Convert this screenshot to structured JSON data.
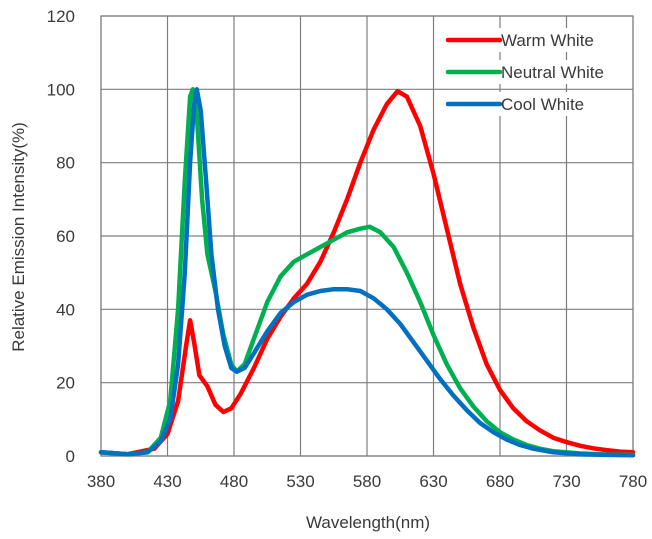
{
  "chart_data": {
    "type": "line",
    "title": "",
    "xlabel": "Wavelength(nm)",
    "ylabel": "Relative Emission Intensity(%)",
    "xlim": [
      380,
      780
    ],
    "ylim": [
      0,
      120
    ],
    "x_ticks": [
      380,
      430,
      480,
      530,
      580,
      630,
      680,
      730,
      780
    ],
    "y_ticks": [
      0,
      20,
      40,
      60,
      80,
      100,
      120
    ],
    "grid": true,
    "legend_position": "top-right",
    "series": [
      {
        "name": "Warm White",
        "color": "#ff0000",
        "points": [
          [
            380,
            1
          ],
          [
            400,
            0.5
          ],
          [
            420,
            2
          ],
          [
            430,
            6
          ],
          [
            438,
            15
          ],
          [
            444,
            30
          ],
          [
            447,
            37
          ],
          [
            450,
            31
          ],
          [
            454,
            22
          ],
          [
            460,
            19
          ],
          [
            466,
            14
          ],
          [
            472,
            12
          ],
          [
            478,
            13
          ],
          [
            485,
            17
          ],
          [
            495,
            24
          ],
          [
            505,
            32
          ],
          [
            515,
            38
          ],
          [
            525,
            43
          ],
          [
            535,
            47
          ],
          [
            545,
            53
          ],
          [
            555,
            61
          ],
          [
            565,
            70
          ],
          [
            575,
            80
          ],
          [
            585,
            89
          ],
          [
            595,
            96
          ],
          [
            603,
            99.5
          ],
          [
            610,
            98
          ],
          [
            620,
            90
          ],
          [
            630,
            77
          ],
          [
            640,
            62
          ],
          [
            650,
            47
          ],
          [
            660,
            35
          ],
          [
            670,
            25
          ],
          [
            680,
            18
          ],
          [
            690,
            13
          ],
          [
            700,
            9.5
          ],
          [
            710,
            7
          ],
          [
            720,
            5
          ],
          [
            730,
            3.8
          ],
          [
            740,
            2.8
          ],
          [
            750,
            2.1
          ],
          [
            760,
            1.6
          ],
          [
            770,
            1.2
          ],
          [
            780,
            1
          ]
        ]
      },
      {
        "name": "Neutral White",
        "color": "#00b050",
        "points": [
          [
            380,
            1
          ],
          [
            400,
            0.5
          ],
          [
            415,
            1
          ],
          [
            425,
            5
          ],
          [
            432,
            15
          ],
          [
            438,
            40
          ],
          [
            443,
            75
          ],
          [
            447,
            98
          ],
          [
            449,
            100
          ],
          [
            452,
            93
          ],
          [
            456,
            70
          ],
          [
            460,
            55
          ],
          [
            466,
            45
          ],
          [
            472,
            33
          ],
          [
            478,
            25
          ],
          [
            482,
            23
          ],
          [
            488,
            25
          ],
          [
            495,
            32
          ],
          [
            505,
            42
          ],
          [
            515,
            49
          ],
          [
            525,
            53
          ],
          [
            535,
            55
          ],
          [
            545,
            57
          ],
          [
            555,
            59
          ],
          [
            565,
            61
          ],
          [
            575,
            62
          ],
          [
            582,
            62.5
          ],
          [
            590,
            61
          ],
          [
            600,
            57
          ],
          [
            610,
            50
          ],
          [
            620,
            42
          ],
          [
            630,
            33
          ],
          [
            640,
            25
          ],
          [
            650,
            18.5
          ],
          [
            660,
            13.5
          ],
          [
            670,
            9.5
          ],
          [
            680,
            6.5
          ],
          [
            690,
            4.5
          ],
          [
            700,
            3
          ],
          [
            710,
            2
          ],
          [
            720,
            1.3
          ],
          [
            740,
            0.7
          ],
          [
            760,
            0.4
          ],
          [
            780,
            0.3
          ]
        ]
      },
      {
        "name": "Cool White",
        "color": "#0070c0",
        "points": [
          [
            380,
            1
          ],
          [
            400,
            0.5
          ],
          [
            415,
            1
          ],
          [
            425,
            4
          ],
          [
            432,
            10
          ],
          [
            438,
            25
          ],
          [
            443,
            50
          ],
          [
            447,
            80
          ],
          [
            450,
            96
          ],
          [
            452,
            100
          ],
          [
            455,
            94
          ],
          [
            459,
            75
          ],
          [
            463,
            55
          ],
          [
            468,
            40
          ],
          [
            473,
            30
          ],
          [
            478,
            24
          ],
          [
            482,
            23
          ],
          [
            488,
            24
          ],
          [
            495,
            28
          ],
          [
            505,
            34
          ],
          [
            515,
            39
          ],
          [
            525,
            42
          ],
          [
            535,
            44
          ],
          [
            545,
            45
          ],
          [
            555,
            45.5
          ],
          [
            565,
            45.5
          ],
          [
            575,
            45
          ],
          [
            585,
            43
          ],
          [
            595,
            40
          ],
          [
            605,
            36
          ],
          [
            615,
            31
          ],
          [
            625,
            26
          ],
          [
            635,
            21
          ],
          [
            645,
            16.5
          ],
          [
            655,
            12.5
          ],
          [
            665,
            9
          ],
          [
            675,
            6.5
          ],
          [
            685,
            4.5
          ],
          [
            695,
            3
          ],
          [
            705,
            2
          ],
          [
            720,
            1
          ],
          [
            740,
            0.5
          ],
          [
            760,
            0.3
          ],
          [
            780,
            0.2
          ]
        ]
      }
    ]
  }
}
